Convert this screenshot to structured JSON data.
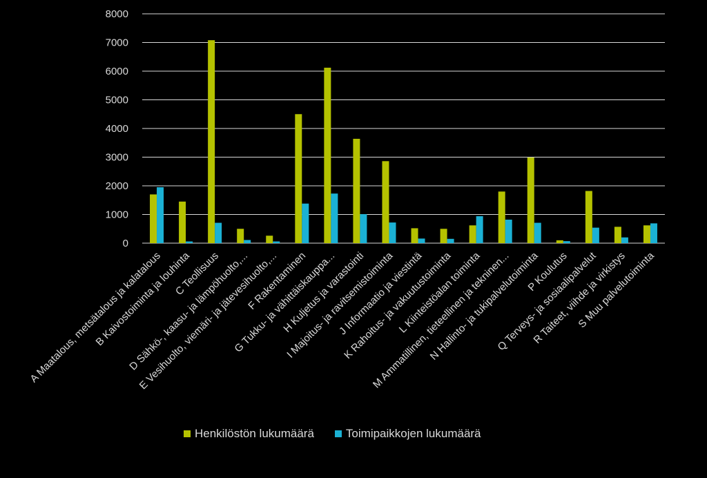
{
  "chart_data": {
    "type": "bar",
    "title": "",
    "xlabel": "",
    "ylabel": "",
    "ylim": [
      0,
      8000
    ],
    "yticks": [
      0,
      1000,
      2000,
      3000,
      4000,
      5000,
      6000,
      7000,
      8000
    ],
    "grid": true,
    "legend_position": "bottom",
    "categories": [
      "A Maatalous, metsätalous ja kalatalous",
      "B Kaivostoiminta ja louhinta",
      "C Teollisuus",
      "D Sähkö-, kaasu- ja lämpöhuolto,...",
      "E Vesihuolto, viemäri- ja jätevesihuolto,...",
      "F Rakentaminen",
      "G Tukku- ja vähittäiskauppa...",
      "H Kuljetus ja varastointi",
      "I Majoitus- ja ravitsemistoiminta",
      "J Informaatio ja viestintä",
      "K Rahoitus- ja vakuutustoiminta",
      "L Kiinteistöalan toiminta",
      "M Ammatillinen, tieteellinen ja tekninen...",
      "N Hallinto- ja tukipalvelutoiminta",
      "P Koulutus",
      "Q Terveys- ja sosiaalipalvelut",
      "R Taiteet, viihde ja virkistys",
      "S Muu palvelutoiminta"
    ],
    "series": [
      {
        "name": "Henkilöstön lukumäärä",
        "color": "#b5c200",
        "values": [
          1700,
          1450,
          7080,
          500,
          260,
          4500,
          6120,
          3640,
          2860,
          520,
          500,
          620,
          1800,
          2990,
          100,
          1820,
          570,
          620
        ]
      },
      {
        "name": "Toimipaikkojen lukumäärä",
        "color": "#1bb1d4",
        "values": [
          1950,
          60,
          710,
          110,
          60,
          1380,
          1730,
          1010,
          720,
          160,
          150,
          940,
          820,
          710,
          70,
          540,
          200,
          690
        ]
      }
    ]
  }
}
